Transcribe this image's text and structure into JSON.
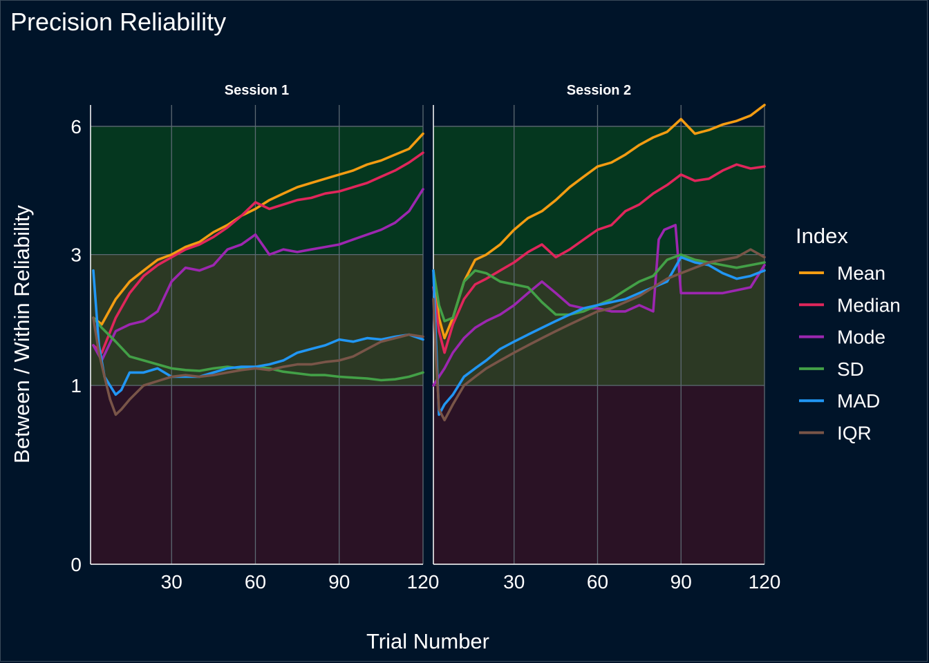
{
  "chart_data": {
    "type": "line",
    "title": "Precision Reliability",
    "xlabel": "Trial Number",
    "ylabel": "Between / Within Reliability",
    "xlim": [
      1,
      120
    ],
    "xticks": [
      30,
      60,
      90,
      120
    ],
    "yticks": [
      0,
      1,
      3,
      6
    ],
    "y_scale": "sqrt",
    "ylim": [
      0,
      6.6
    ],
    "grid": true,
    "legend": {
      "title": "Index",
      "position": "right"
    },
    "bands": [
      {
        "from": 0,
        "to": 1,
        "color": "#2a1225"
      },
      {
        "from": 1,
        "to": 3,
        "color": "#2c3924"
      },
      {
        "from": 3,
        "to": 6,
        "color": "#05371f"
      }
    ],
    "series_styles": [
      {
        "name": "Mean",
        "color": "#f39c12"
      },
      {
        "name": "Median",
        "color": "#e0265b"
      },
      {
        "name": "Mode",
        "color": "#9c27b0"
      },
      {
        "name": "SD",
        "color": "#43a047"
      },
      {
        "name": "MAD",
        "color": "#2196f3"
      },
      {
        "name": "IQR",
        "color": "#795548"
      }
    ],
    "panels": [
      {
        "label": "Session 1",
        "series": [
          {
            "name": "Mean",
            "x": [
              2,
              5,
              10,
              15,
              20,
              25,
              30,
              35,
              40,
              45,
              50,
              55,
              60,
              65,
              70,
              75,
              80,
              85,
              90,
              95,
              100,
              105,
              110,
              115,
              120
            ],
            "values": [
              1.9,
              1.8,
              2.2,
              2.5,
              2.7,
              2.9,
              3.0,
              3.15,
              3.25,
              3.45,
              3.6,
              3.8,
              3.95,
              4.15,
              4.3,
              4.45,
              4.55,
              4.65,
              4.75,
              4.85,
              5.0,
              5.1,
              5.25,
              5.4,
              5.8
            ]
          },
          {
            "name": "Median",
            "x": [
              2,
              5,
              10,
              15,
              20,
              25,
              30,
              35,
              40,
              45,
              50,
              55,
              60,
              65,
              70,
              75,
              80,
              85,
              90,
              95,
              100,
              105,
              110,
              115,
              120
            ],
            "values": [
              1.5,
              1.4,
              1.9,
              2.3,
              2.6,
              2.8,
              2.95,
              3.1,
              3.2,
              3.35,
              3.55,
              3.8,
              4.1,
              3.95,
              4.05,
              4.15,
              4.2,
              4.3,
              4.35,
              4.45,
              4.55,
              4.7,
              4.85,
              5.05,
              5.3
            ]
          },
          {
            "name": "Mode",
            "x": [
              2,
              5,
              10,
              15,
              20,
              25,
              30,
              35,
              40,
              45,
              50,
              55,
              60,
              65,
              70,
              75,
              80,
              85,
              90,
              95,
              100,
              105,
              110,
              115,
              120
            ],
            "values": [
              1.5,
              1.3,
              1.7,
              1.8,
              1.85,
              2.0,
              2.5,
              2.75,
              2.7,
              2.8,
              3.1,
              3.2,
              3.4,
              3.0,
              3.1,
              3.05,
              3.1,
              3.15,
              3.2,
              3.3,
              3.4,
              3.5,
              3.65,
              3.9,
              4.4
            ]
          },
          {
            "name": "SD",
            "x": [
              2,
              5,
              10,
              15,
              20,
              25,
              30,
              35,
              40,
              45,
              50,
              55,
              60,
              65,
              70,
              75,
              80,
              85,
              90,
              95,
              100,
              105,
              110,
              115,
              120
            ],
            "values": [
              1.9,
              1.75,
              1.55,
              1.35,
              1.3,
              1.25,
              1.2,
              1.18,
              1.17,
              1.2,
              1.22,
              1.2,
              1.22,
              1.2,
              1.16,
              1.14,
              1.12,
              1.12,
              1.1,
              1.09,
              1.08,
              1.06,
              1.07,
              1.1,
              1.15
            ]
          },
          {
            "name": "MAD",
            "x": [
              2,
              4,
              6,
              10,
              12,
              15,
              20,
              25,
              30,
              35,
              40,
              45,
              50,
              55,
              60,
              65,
              70,
              75,
              80,
              85,
              90,
              95,
              100,
              105,
              110,
              115,
              120
            ],
            "values": [
              2.7,
              1.5,
              1.1,
              0.9,
              0.95,
              1.15,
              1.15,
              1.2,
              1.1,
              1.1,
              1.1,
              1.15,
              1.2,
              1.22,
              1.22,
              1.25,
              1.3,
              1.4,
              1.45,
              1.5,
              1.58,
              1.55,
              1.6,
              1.58,
              1.62,
              1.65,
              1.58
            ]
          },
          {
            "name": "IQR",
            "x": [
              2,
              4,
              6,
              8,
              10,
              12,
              15,
              20,
              25,
              30,
              35,
              40,
              45,
              50,
              55,
              60,
              65,
              70,
              75,
              80,
              85,
              90,
              95,
              100,
              105,
              110,
              115,
              120
            ],
            "values": [
              1.9,
              1.4,
              1.1,
              0.85,
              0.7,
              0.75,
              0.85,
              1.0,
              1.05,
              1.1,
              1.12,
              1.1,
              1.12,
              1.15,
              1.18,
              1.2,
              1.18,
              1.22,
              1.25,
              1.25,
              1.28,
              1.3,
              1.35,
              1.45,
              1.55,
              1.6,
              1.65,
              1.62
            ]
          }
        ]
      },
      {
        "label": "Session 2",
        "series": [
          {
            "name": "Mean",
            "x": [
              1,
              3,
              5,
              8,
              12,
              16,
              20,
              25,
              30,
              35,
              40,
              45,
              50,
              55,
              60,
              65,
              70,
              75,
              80,
              85,
              90,
              95,
              100,
              105,
              110,
              115,
              120
            ],
            "values": [
              2.7,
              1.9,
              1.6,
              1.9,
              2.5,
              2.9,
              3.0,
              3.2,
              3.5,
              3.75,
              3.9,
              4.15,
              4.45,
              4.7,
              4.95,
              5.05,
              5.25,
              5.5,
              5.7,
              5.85,
              6.2,
              5.8,
              5.9,
              6.05,
              6.15,
              6.3,
              6.6
            ]
          },
          {
            "name": "Median",
            "x": [
              1,
              3,
              5,
              8,
              12,
              16,
              20,
              25,
              30,
              35,
              40,
              45,
              50,
              55,
              60,
              65,
              70,
              75,
              80,
              85,
              90,
              95,
              100,
              105,
              110,
              115,
              120
            ],
            "values": [
              2.4,
              1.7,
              1.4,
              1.8,
              2.2,
              2.45,
              2.55,
              2.7,
              2.85,
              3.05,
              3.2,
              2.95,
              3.1,
              3.3,
              3.5,
              3.6,
              3.9,
              4.05,
              4.3,
              4.5,
              4.75,
              4.6,
              4.65,
              4.85,
              5.0,
              4.9,
              4.95
            ]
          },
          {
            "name": "Mode",
            "x": [
              1,
              3,
              5,
              8,
              12,
              16,
              20,
              25,
              30,
              35,
              40,
              45,
              50,
              55,
              60,
              65,
              70,
              75,
              80,
              82,
              84,
              86,
              88,
              90,
              95,
              100,
              105,
              110,
              115,
              120
            ],
            "values": [
              1.0,
              1.1,
              1.2,
              1.4,
              1.6,
              1.75,
              1.85,
              1.95,
              2.1,
              2.3,
              2.5,
              2.3,
              2.1,
              2.05,
              2.05,
              2.0,
              2.0,
              2.1,
              2.0,
              3.3,
              3.5,
              3.55,
              3.6,
              2.3,
              2.3,
              2.3,
              2.3,
              2.35,
              2.4,
              2.8
            ]
          },
          {
            "name": "SD",
            "x": [
              1,
              3,
              5,
              8,
              12,
              16,
              20,
              25,
              30,
              35,
              40,
              45,
              50,
              55,
              60,
              65,
              70,
              75,
              80,
              85,
              90,
              95,
              100,
              105,
              110,
              115,
              120
            ],
            "values": [
              2.7,
              2.1,
              1.85,
              1.9,
              2.5,
              2.7,
              2.65,
              2.5,
              2.45,
              2.4,
              2.15,
              1.95,
              1.95,
              2.0,
              2.1,
              2.2,
              2.35,
              2.5,
              2.6,
              2.9,
              3.0,
              2.9,
              2.85,
              2.8,
              2.75,
              2.8,
              2.85
            ]
          },
          {
            "name": "MAD",
            "x": [
              1,
              2,
              3,
              5,
              8,
              12,
              16,
              20,
              25,
              30,
              35,
              40,
              45,
              50,
              55,
              60,
              65,
              70,
              75,
              80,
              85,
              90,
              95,
              100,
              105,
              110,
              115,
              120
            ],
            "values": [
              2.7,
              1.5,
              0.7,
              0.8,
              0.9,
              1.1,
              1.2,
              1.3,
              1.45,
              1.55,
              1.65,
              1.75,
              1.85,
              1.95,
              2.05,
              2.1,
              2.15,
              2.2,
              2.3,
              2.4,
              2.5,
              2.95,
              2.85,
              2.8,
              2.65,
              2.55,
              2.6,
              2.7
            ]
          },
          {
            "name": "IQR",
            "x": [
              1,
              2,
              3,
              5,
              8,
              12,
              16,
              20,
              25,
              30,
              35,
              40,
              45,
              50,
              55,
              60,
              65,
              70,
              75,
              80,
              85,
              90,
              95,
              100,
              105,
              110,
              115,
              120
            ],
            "values": [
              2.2,
              1.3,
              0.75,
              0.65,
              0.8,
              1.0,
              1.1,
              1.2,
              1.3,
              1.4,
              1.5,
              1.6,
              1.7,
              1.8,
              1.9,
              2.0,
              2.05,
              2.15,
              2.25,
              2.4,
              2.55,
              2.65,
              2.75,
              2.85,
              2.9,
              2.95,
              3.1,
              2.95
            ]
          }
        ]
      }
    ]
  }
}
